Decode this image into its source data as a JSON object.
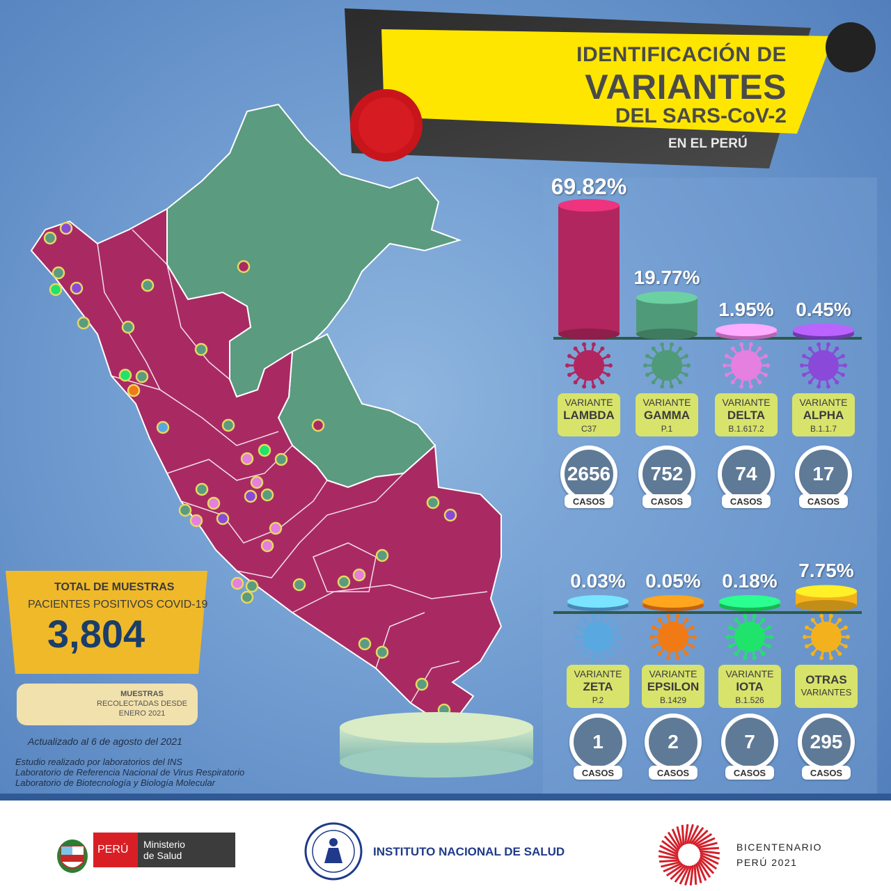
{
  "header": {
    "title_prefix": "IDENTIFICACIÓN DE",
    "title_big": "VARIANTES",
    "title_line2": "DEL SARS-CoV-2",
    "subtitle": "EN EL PERÚ"
  },
  "chart_data": {
    "type": "bar",
    "title": "IDENTIFICACIÓN DE VARIANTES DEL SARS-CoV-2",
    "categories": [
      "LAMBDA",
      "GAMMA",
      "DELTA",
      "ALPHA",
      "ZETA",
      "EPSILON",
      "IOTA",
      "OTRAS VARIANTES"
    ],
    "series": [
      {
        "values": [
          69.82,
          19.77,
          1.95,
          0.45,
          0.03,
          0.05,
          0.18,
          7.75
        ]
      },
      {
        "values": [
          2656,
          752,
          74,
          17,
          1,
          2,
          7,
          295
        ]
      }
    ]
  },
  "variants": [
    {
      "variant_label": "VARIANTE",
      "name": "LAMBDA",
      "code": "C37",
      "percent_label": "69.82%",
      "cases": "2656",
      "cases_label": "CASOS",
      "color": "#b1265e"
    },
    {
      "variant_label": "VARIANTE",
      "name": "GAMMA",
      "code": "P.1",
      "percent_label": "19.77%",
      "cases": "752",
      "cases_label": "CASOS",
      "color": "#4f9a78"
    },
    {
      "variant_label": "VARIANTE",
      "name": "DELTA",
      "code": "B.1.617.2",
      "percent_label": "1.95%",
      "cases": "74",
      "cases_label": "CASOS",
      "color": "#e57fe0"
    },
    {
      "variant_label": "VARIANTE",
      "name": "ALPHA",
      "code": "B.1.1.7",
      "percent_label": "0.45%",
      "cases": "17",
      "cases_label": "CASOS",
      "color": "#8a49d9"
    },
    {
      "variant_label": "VARIANTE",
      "name": "ZETA",
      "code": "P.2",
      "percent_label": "0.03%",
      "cases": "1",
      "cases_label": "CASOS",
      "color": "#5aa8e0"
    },
    {
      "variant_label": "VARIANTE",
      "name": "EPSILON",
      "code": "B.1429",
      "percent_label": "0.05%",
      "cases": "2",
      "cases_label": "CASOS",
      "color": "#f07a16"
    },
    {
      "variant_label": "VARIANTE",
      "name": "IOTA",
      "code": "B.1.526",
      "percent_label": "0.18%",
      "cases": "7",
      "cases_label": "CASOS",
      "color": "#1fe36a"
    },
    {
      "variant_label": "",
      "name": "OTRAS",
      "code": "VARIANTES",
      "percent_label": "7.75%",
      "cases": "295",
      "cases_label": "CASOS",
      "color": "#f3b21d"
    }
  ],
  "colors": {
    "lambda_region": "#a92a63",
    "gamma_region": "#5b9b80",
    "title_band": "#ffe600",
    "total_box": "#f0b92a"
  },
  "total": {
    "label1": "TOTAL DE MUESTRAS",
    "label2": "PACIENTES POSITIVOS COVID-19",
    "value": "3,804"
  },
  "muestras": {
    "line1": "MUESTRAS",
    "line2": "RECOLECTADAS DESDE",
    "line3": "ENERO 2021"
  },
  "updated": "Actualizado al 6 de agosto del 2021",
  "study": {
    "line1": "Estudio realizado por laboratorios del INS",
    "line2": "Laboratorio de Referencia Nacional de Virus Respiratorio",
    "line3": "Laboratorio de Biotecnología y Biología Molecular"
  },
  "footer": {
    "peru": "PERÚ",
    "ministerio1": "Ministerio",
    "ministerio2": "de Salud",
    "ins": "INSTITUTO NACIONAL DE SALUD",
    "bicentenario1": "BICENTENARIO",
    "bicentenario2": "PERÚ 2021"
  }
}
